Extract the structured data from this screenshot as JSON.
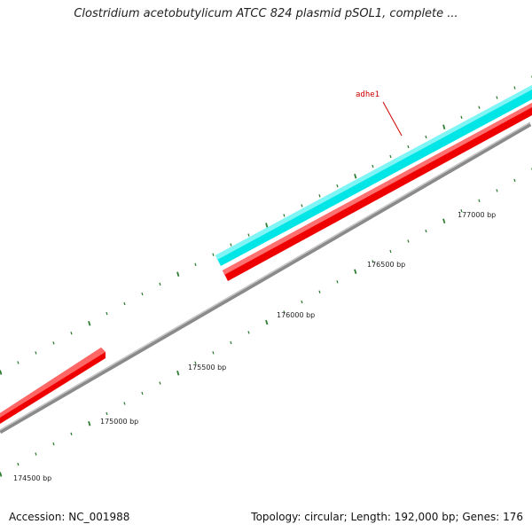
{
  "title": "Clostridium acetobutylicum ATCC 824 plasmid pSOL1, complete ...",
  "footer": {
    "accession": "Accession: NC_001988",
    "summary": "Topology: circular; Length: 192,000 bp; Genes: 176"
  },
  "gene_label": "adhe1",
  "ruler_labels": [
    "174500 bp",
    "175000 bp",
    "175500 bp",
    "176000 bp",
    "176500 bp",
    "177000 bp"
  ],
  "colors": {
    "backbone": "#8a8a8a",
    "forward_gene": "#00e5e5",
    "reverse_gene": "#ee0000",
    "ticks": "#2e7d32",
    "label_line": "#cc0000"
  }
}
